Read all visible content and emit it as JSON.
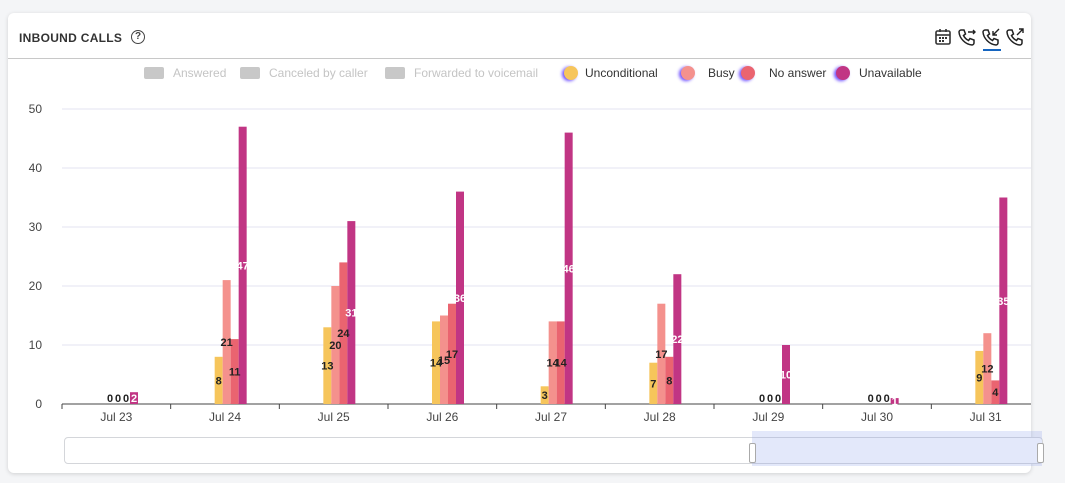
{
  "widget": {
    "title": "INBOUND CALLS",
    "help_glyph": "?"
  },
  "toolbar": {
    "icons": [
      "calendar-icon",
      "phone-transfer-icon",
      "phone-incoming-icon",
      "phone-outgoing-icon"
    ],
    "active_index": 2
  },
  "colors": {
    "unconditional": "#f6c55b",
    "busy": "#f4918d",
    "no_answer": "#ea6470",
    "unavailable": "#c13584",
    "disabled": "#c8c8c8",
    "grid": "#e3e3f0",
    "axis": "#444444"
  },
  "chart_data": {
    "type": "bar",
    "categories": [
      "Jul 23",
      "Jul 24",
      "Jul 25",
      "Jul 26",
      "Jul 27",
      "Jul 28",
      "Jul 29",
      "Jul 30",
      "Jul 31"
    ],
    "ylim": [
      0,
      50
    ],
    "yticks": [
      0,
      10,
      20,
      30,
      40,
      50
    ],
    "grid": true,
    "legend_position": "top",
    "legend": [
      {
        "name": "Answered",
        "enabled": false
      },
      {
        "name": "Canceled by caller",
        "enabled": false
      },
      {
        "name": "Forwarded to voicemail",
        "enabled": false
      },
      {
        "name": "Unconditional",
        "enabled": true,
        "color": "#f6c55b"
      },
      {
        "name": "Busy",
        "enabled": true,
        "color": "#f4918d"
      },
      {
        "name": "No answer",
        "enabled": true,
        "color": "#ea6470"
      },
      {
        "name": "Unavailable",
        "enabled": true,
        "color": "#c13584"
      }
    ],
    "series": [
      {
        "name": "Unconditional",
        "values": [
          0,
          8,
          13,
          14,
          3,
          7,
          0,
          0,
          9
        ]
      },
      {
        "name": "Busy",
        "values": [
          0,
          21,
          20,
          15,
          14,
          17,
          0,
          0,
          12
        ]
      },
      {
        "name": "No answer",
        "values": [
          0,
          11,
          24,
          17,
          14,
          8,
          0,
          0,
          4
        ]
      },
      {
        "name": "Unavailable",
        "values": [
          2,
          47,
          31,
          36,
          46,
          22,
          10,
          1,
          35
        ]
      }
    ]
  },
  "scroller": {
    "handle_label": "III"
  }
}
